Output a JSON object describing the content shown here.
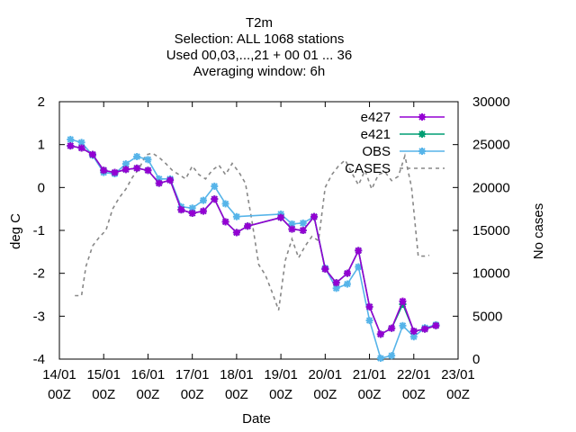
{
  "chart_data": {
    "type": "line",
    "title_lines": [
      "T2m",
      "Selection: ALL   1068 stations",
      "Used  00,03,...,21  + 00 01 ... 36",
      "Averaging window:  6h"
    ],
    "xlabel": "Date",
    "ylabel": "deg C",
    "y2label": "No cases",
    "xlim": [
      0,
      9
    ],
    "ylim": [
      -4,
      2
    ],
    "y2lim": [
      0,
      30000
    ],
    "x_unit": "days since 14/01 00Z",
    "x_ticks": [
      {
        "v": 0,
        "l1": "14/01",
        "l2": "00Z"
      },
      {
        "v": 1,
        "l1": "15/01",
        "l2": "00Z"
      },
      {
        "v": 2,
        "l1": "16/01",
        "l2": "00Z"
      },
      {
        "v": 3,
        "l1": "17/01",
        "l2": "00Z"
      },
      {
        "v": 4,
        "l1": "18/01",
        "l2": "00Z"
      },
      {
        "v": 5,
        "l1": "19/01",
        "l2": "00Z"
      },
      {
        "v": 6,
        "l1": "20/01",
        "l2": "00Z"
      },
      {
        "v": 7,
        "l1": "21/01",
        "l2": "00Z"
      },
      {
        "v": 8,
        "l1": "22/01",
        "l2": "00Z"
      },
      {
        "v": 9,
        "l1": "23/01",
        "l2": "00Z"
      }
    ],
    "y_ticks": [
      "2",
      "1",
      "0",
      "-1",
      "-2",
      "-3",
      "-4"
    ],
    "y2_ticks": [
      "30000",
      "25000",
      "20000",
      "15000",
      "10000",
      "5000",
      "0"
    ],
    "legend_position": "top-right",
    "series": [
      {
        "name": "e427",
        "color": "#9400d3",
        "style": "line-star",
        "x": [
          0.25,
          0.5,
          0.75,
          1.0,
          1.25,
          1.5,
          1.75,
          2.0,
          2.25,
          2.5,
          2.75,
          3.0,
          3.25,
          3.5,
          3.75,
          4.0,
          4.25,
          5.0,
          5.25,
          5.5,
          5.75,
          6.0,
          6.25,
          6.5,
          6.75,
          7.0,
          7.25,
          7.5,
          7.75,
          8.0,
          8.25,
          8.5
        ],
        "y": [
          0.97,
          0.92,
          0.77,
          0.4,
          0.35,
          0.42,
          0.45,
          0.4,
          0.1,
          0.17,
          -0.52,
          -0.6,
          -0.55,
          -0.27,
          -0.8,
          -1.05,
          -0.9,
          -0.7,
          -0.97,
          -1.0,
          -0.68,
          -1.9,
          -2.22,
          -2.0,
          -1.47,
          -2.78,
          -3.42,
          -3.28,
          -2.65,
          -3.35,
          -3.3,
          -3.22
        ]
      },
      {
        "name": "e421",
        "color": "#009e73",
        "style": "line-star",
        "x": [
          0.25,
          0.5,
          0.75,
          1.0,
          1.25,
          1.5,
          1.75,
          2.0,
          2.25,
          2.5,
          2.75,
          3.0,
          3.25,
          3.5,
          3.75,
          4.0,
          4.25,
          5.0,
          5.25,
          5.5,
          5.75,
          6.0,
          6.25,
          6.5,
          6.75,
          7.0,
          7.25,
          7.5,
          7.75,
          8.0,
          8.25,
          8.5
        ],
        "y": [
          0.97,
          0.92,
          0.77,
          0.4,
          0.35,
          0.42,
          0.45,
          0.4,
          0.1,
          0.17,
          -0.52,
          -0.6,
          -0.55,
          -0.27,
          -0.8,
          -1.05,
          -0.9,
          -0.7,
          -0.97,
          -1.0,
          -0.68,
          -1.9,
          -2.22,
          -2.0,
          -1.47,
          -2.78,
          -3.42,
          -3.28,
          -2.72,
          -3.35,
          -3.3,
          -3.22
        ]
      },
      {
        "name": "OBS",
        "color": "#56b4e9",
        "style": "line-star",
        "x": [
          0.25,
          0.5,
          0.75,
          1.0,
          1.25,
          1.5,
          1.75,
          2.0,
          2.25,
          2.5,
          2.75,
          3.0,
          3.25,
          3.5,
          3.75,
          4.0,
          5.0,
          5.25,
          5.5,
          5.75,
          6.0,
          6.25,
          6.5,
          6.75,
          7.0,
          7.25,
          7.5,
          7.75,
          8.0,
          8.25,
          8.5
        ],
        "y": [
          1.12,
          1.05,
          0.75,
          0.35,
          0.32,
          0.55,
          0.72,
          0.65,
          0.2,
          0.2,
          -0.45,
          -0.48,
          -0.3,
          0.03,
          -0.38,
          -0.68,
          -0.62,
          -0.85,
          -0.83,
          -0.68,
          -1.88,
          -2.35,
          -2.25,
          -1.85,
          -3.1,
          -3.98,
          -3.92,
          -3.22,
          -3.48,
          -3.27,
          -3.2
        ]
      },
      {
        "name": "CASES",
        "color": "#888888",
        "style": "dashed",
        "axis": "y2",
        "x": [
          0.35,
          0.5,
          0.6,
          0.75,
          0.9,
          1.05,
          1.2,
          1.35,
          1.5,
          1.65,
          1.8,
          1.95,
          2.1,
          2.25,
          2.4,
          2.55,
          2.7,
          2.85,
          3.0,
          3.15,
          3.3,
          3.45,
          3.6,
          3.75,
          3.9,
          4.05,
          4.2,
          4.35,
          4.5,
          4.65,
          4.8,
          4.95,
          5.1,
          5.25,
          5.4,
          5.55,
          5.7,
          5.85,
          6.0,
          6.15,
          6.3,
          6.45,
          6.6,
          6.75,
          6.9,
          7.05,
          7.2,
          7.35,
          7.5,
          7.65,
          7.8,
          7.95,
          8.1,
          8.25,
          8.35
        ],
        "y": [
          7400,
          7400,
          10800,
          13200,
          14200,
          15000,
          17500,
          18800,
          19800,
          21200,
          22200,
          23800,
          24000,
          23500,
          22800,
          22000,
          21500,
          21000,
          22500,
          21500,
          21000,
          22000,
          22600,
          21500,
          22800,
          21800,
          20500,
          16000,
          11000,
          9800,
          7800,
          5700,
          11500,
          14000,
          11800,
          13200,
          14300,
          13800,
          20000,
          21500,
          22500,
          23200,
          21700,
          20300,
          22000,
          19800,
          21500,
          21800,
          20800,
          21300,
          23700,
          20000,
          12000,
          12000,
          12100
        ]
      }
    ]
  }
}
